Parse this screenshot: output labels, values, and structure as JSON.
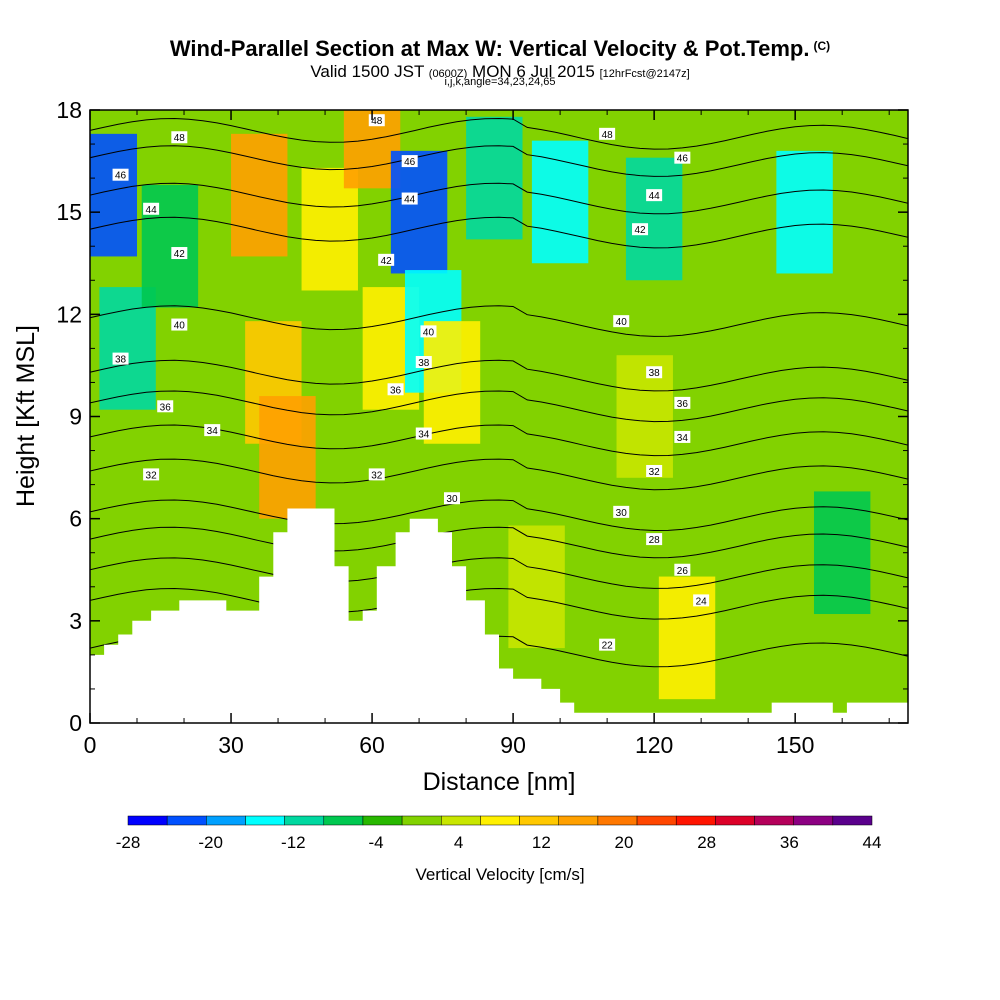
{
  "title": {
    "main": "Wind-Parallel Section at Max W: Vertical Velocity & Pot.Temp.",
    "main_mark": "(C)",
    "sub_a": "Valid 1500 JST",
    "sub_b": "(0600Z)",
    "sub_c": "MON 6 Jul 2015",
    "sub_d": "[12hrFcst@2147z]",
    "sub2": "i,j,k,angle=34,23,24,65"
  },
  "chart_data": {
    "type": "heatmap",
    "xlabel": "Distance [nm]",
    "ylabel": "Height [Kft MSL]",
    "xlim": [
      0,
      174
    ],
    "ylim": [
      0,
      18
    ],
    "x_ticks": [
      "0",
      "30",
      "60",
      "90",
      "120",
      "150"
    ],
    "y_ticks": [
      "0",
      "3",
      "6",
      "9",
      "12",
      "15",
      "18"
    ],
    "colorbar": {
      "title": "Vertical Velocity [cm/s]",
      "labels": [
        "-28",
        "-20",
        "-12",
        "-4",
        "4",
        "12",
        "20",
        "28",
        "36",
        "44"
      ],
      "bounds": [
        -28,
        44
      ],
      "colors": [
        "#0000ff",
        "#0050ff",
        "#00a0ff",
        "#00ffff",
        "#00d8a0",
        "#00c850",
        "#28b800",
        "#82d200",
        "#c8e600",
        "#fff000",
        "#ffc800",
        "#ffa000",
        "#ff7800",
        "#ff4600",
        "#ff1400",
        "#dc0028",
        "#b4005a",
        "#8c0082",
        "#5a008c"
      ]
    },
    "w_field_cells": [
      {
        "x": 4,
        "z": 15.5,
        "w": -22
      },
      {
        "x": 8,
        "z": 11,
        "w": -12
      },
      {
        "x": 17,
        "z": 14,
        "w": -8
      },
      {
        "x": 36,
        "z": 15.5,
        "w": 14
      },
      {
        "x": 39,
        "z": 10,
        "w": 10
      },
      {
        "x": 42,
        "z": 7.8,
        "w": 17
      },
      {
        "x": 51,
        "z": 14.5,
        "w": 9
      },
      {
        "x": 60,
        "z": 17.5,
        "w": 14
      },
      {
        "x": 64,
        "z": 11,
        "w": 7
      },
      {
        "x": 70,
        "z": 15,
        "w": -24
      },
      {
        "x": 73,
        "z": 11.5,
        "w": -16
      },
      {
        "x": 77,
        "z": 10,
        "w": 9
      },
      {
        "x": 86,
        "z": 16,
        "w": -10
      },
      {
        "x": 100,
        "z": 15.3,
        "w": -14
      },
      {
        "x": 120,
        "z": 14.8,
        "w": -12
      },
      {
        "x": 152,
        "z": 15,
        "w": -16
      },
      {
        "x": 118,
        "z": 9,
        "w": 5
      },
      {
        "x": 160,
        "z": 5,
        "w": -9
      },
      {
        "x": 95,
        "z": 4,
        "w": 3
      },
      {
        "x": 127,
        "z": 2.5,
        "w": 7
      }
    ],
    "theta_contours": [
      {
        "label": "22",
        "z": 2.2
      },
      {
        "label": "24",
        "z": 3.6
      },
      {
        "label": "26",
        "z": 4.5
      },
      {
        "label": "28",
        "z": 5.4
      },
      {
        "label": "30",
        "z": 6.2
      },
      {
        "label": "32",
        "z": 7.4
      },
      {
        "label": "34",
        "z": 8.4
      },
      {
        "label": "36",
        "z": 9.4
      },
      {
        "label": "38",
        "z": 10.3
      },
      {
        "label": "40",
        "z": 11.9
      },
      {
        "label": "42",
        "z": 14.5
      },
      {
        "label": "44",
        "z": 15.5
      },
      {
        "label": "46",
        "z": 16.6
      },
      {
        "label": "48",
        "z": 17.4
      }
    ],
    "theta_labels": [
      {
        "text": "48",
        "x": 19,
        "z": 17.2
      },
      {
        "text": "46",
        "x": 6.5,
        "z": 16.1
      },
      {
        "text": "44",
        "x": 13,
        "z": 15.1
      },
      {
        "text": "42",
        "x": 19,
        "z": 13.8
      },
      {
        "text": "40",
        "x": 19,
        "z": 11.7
      },
      {
        "text": "38",
        "x": 6.5,
        "z": 10.7
      },
      {
        "text": "36",
        "x": 16,
        "z": 9.3
      },
      {
        "text": "34",
        "x": 26,
        "z": 8.6
      },
      {
        "text": "32",
        "x": 13,
        "z": 7.3
      },
      {
        "text": "48",
        "x": 61,
        "z": 17.7
      },
      {
        "text": "46",
        "x": 68,
        "z": 16.5
      },
      {
        "text": "44",
        "x": 68,
        "z": 15.4
      },
      {
        "text": "42",
        "x": 63,
        "z": 13.6
      },
      {
        "text": "40",
        "x": 72,
        "z": 11.5
      },
      {
        "text": "38",
        "x": 71,
        "z": 10.6
      },
      {
        "text": "36",
        "x": 65,
        "z": 9.8
      },
      {
        "text": "34",
        "x": 71,
        "z": 8.5
      },
      {
        "text": "32",
        "x": 61,
        "z": 7.3
      },
      {
        "text": "30",
        "x": 77,
        "z": 6.6
      },
      {
        "text": "48",
        "x": 110,
        "z": 17.3
      },
      {
        "text": "46",
        "x": 126,
        "z": 16.6
      },
      {
        "text": "44",
        "x": 120,
        "z": 15.5
      },
      {
        "text": "42",
        "x": 117,
        "z": 14.5
      },
      {
        "text": "40",
        "x": 113,
        "z": 11.8
      },
      {
        "text": "38",
        "x": 120,
        "z": 10.3
      },
      {
        "text": "36",
        "x": 126,
        "z": 9.4
      },
      {
        "text": "34",
        "x": 126,
        "z": 8.4
      },
      {
        "text": "32",
        "x": 120,
        "z": 7.4
      },
      {
        "text": "30",
        "x": 113,
        "z": 6.2
      },
      {
        "text": "28",
        "x": 120,
        "z": 5.4
      },
      {
        "text": "26",
        "x": 126,
        "z": 4.5
      },
      {
        "text": "24",
        "x": 130,
        "z": 3.6
      },
      {
        "text": "22",
        "x": 110,
        "z": 2.3
      }
    ],
    "terrain": [
      [
        0,
        2.0
      ],
      [
        3,
        2.0
      ],
      [
        3,
        2.3
      ],
      [
        6,
        2.3
      ],
      [
        6,
        2.6
      ],
      [
        9,
        2.6
      ],
      [
        9,
        3.0
      ],
      [
        13,
        3.0
      ],
      [
        13,
        3.3
      ],
      [
        19,
        3.3
      ],
      [
        19,
        3.6
      ],
      [
        29,
        3.6
      ],
      [
        29,
        3.3
      ],
      [
        36,
        3.3
      ],
      [
        36,
        4.3
      ],
      [
        39,
        4.3
      ],
      [
        39,
        5.6
      ],
      [
        42,
        5.6
      ],
      [
        42,
        6.3
      ],
      [
        52,
        6.3
      ],
      [
        52,
        4.6
      ],
      [
        55,
        4.6
      ],
      [
        55,
        3.0
      ],
      [
        58,
        3.0
      ],
      [
        58,
        3.3
      ],
      [
        61,
        3.3
      ],
      [
        61,
        4.6
      ],
      [
        65,
        4.6
      ],
      [
        65,
        5.6
      ],
      [
        68,
        5.6
      ],
      [
        68,
        6.0
      ],
      [
        74,
        6.0
      ],
      [
        74,
        5.6
      ],
      [
        77,
        5.6
      ],
      [
        77,
        4.6
      ],
      [
        80,
        4.6
      ],
      [
        80,
        3.6
      ],
      [
        84,
        3.6
      ],
      [
        84,
        2.6
      ],
      [
        87,
        2.6
      ],
      [
        87,
        1.6
      ],
      [
        90,
        1.6
      ],
      [
        90,
        1.3
      ],
      [
        96,
        1.3
      ],
      [
        96,
        1.0
      ],
      [
        100,
        1.0
      ],
      [
        100,
        0.6
      ],
      [
        103,
        0.6
      ],
      [
        103,
        0.3
      ],
      [
        145,
        0.3
      ],
      [
        145,
        0.6
      ],
      [
        158,
        0.6
      ],
      [
        158,
        0.3
      ],
      [
        161,
        0.3
      ],
      [
        161,
        0.6
      ],
      [
        174,
        0.6
      ]
    ]
  }
}
